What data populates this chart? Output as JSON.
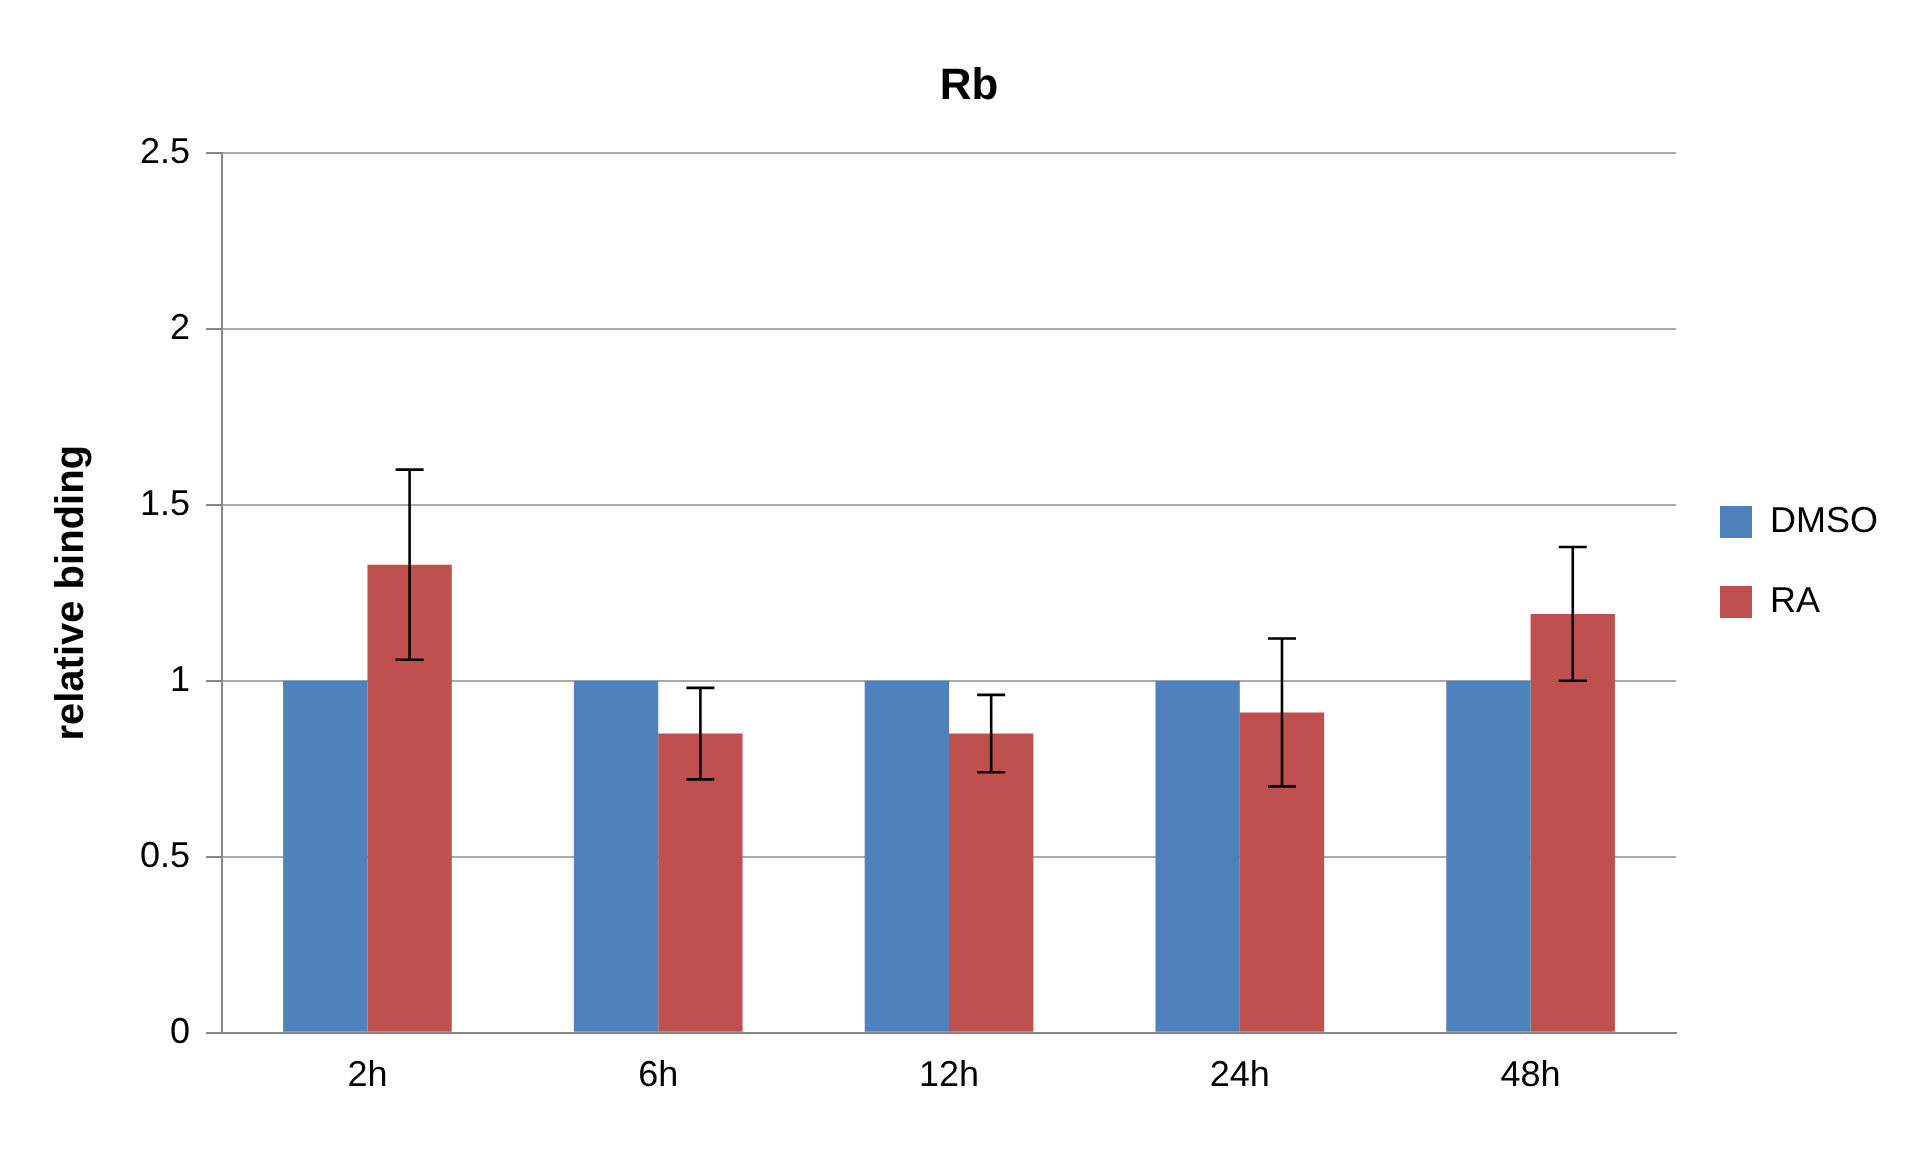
{
  "chart_data": {
    "type": "bar",
    "title": "Rb",
    "ylabel": "relative binding",
    "categories": [
      "2h",
      "6h",
      "12h",
      "24h",
      "48h"
    ],
    "series": [
      {
        "name": "DMSO",
        "color": "#4f81bd",
        "values": [
          1,
          1,
          1,
          1,
          1
        ]
      },
      {
        "name": "RA",
        "color": "#c0504d",
        "values": [
          1.33,
          0.85,
          0.85,
          0.91,
          1.19
        ],
        "errors": [
          0.27,
          0.13,
          0.11,
          0.21,
          0.19
        ]
      }
    ],
    "ylim": [
      0,
      2.5
    ],
    "yticks": [
      0,
      0.5,
      1,
      1.5,
      2,
      2.5
    ],
    "grid": "y",
    "legend": "right"
  }
}
